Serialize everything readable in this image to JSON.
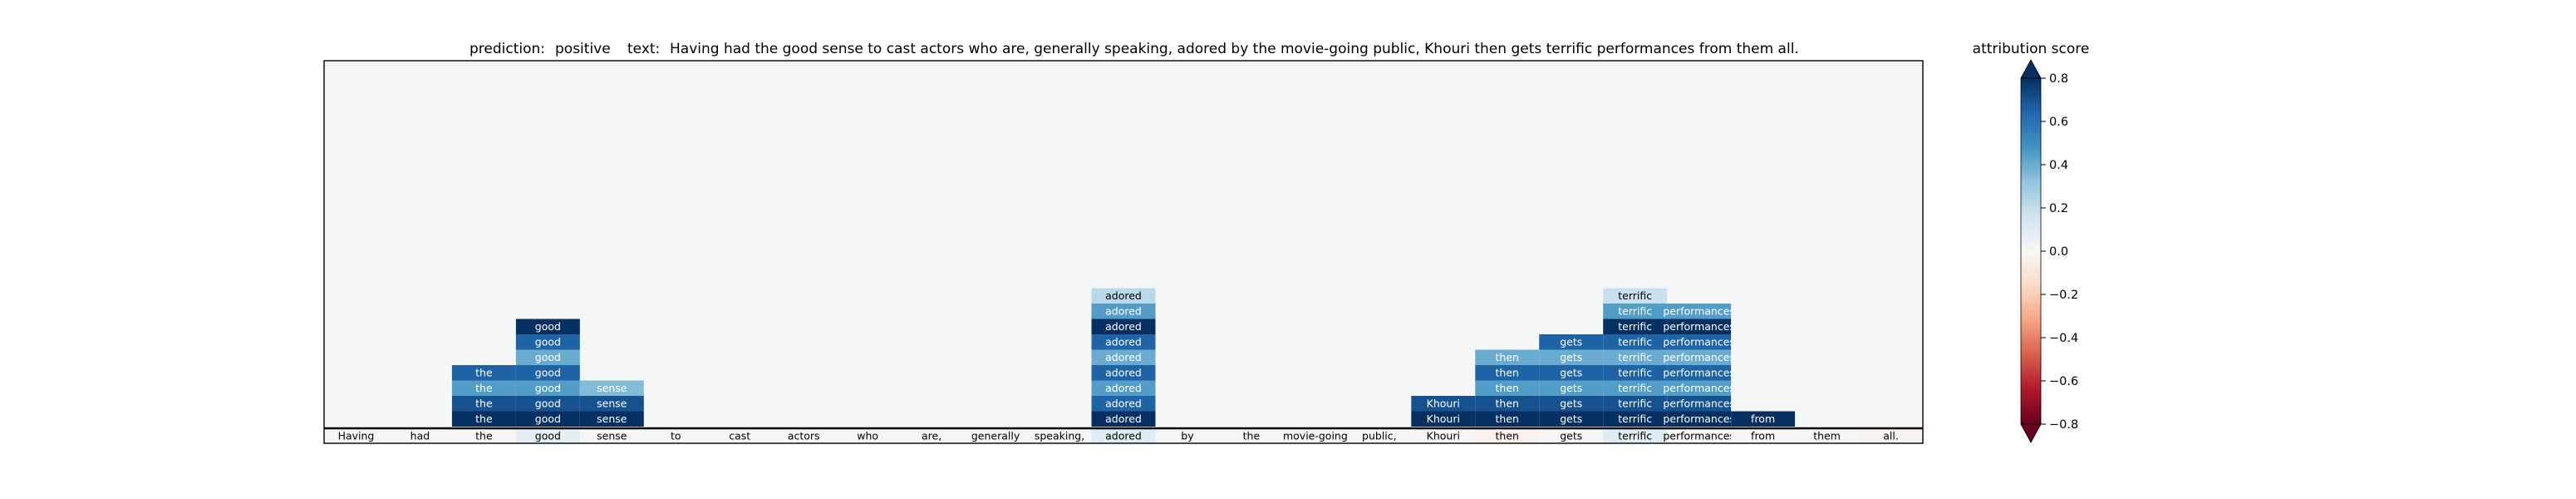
{
  "chart_data": {
    "type": "heatmap",
    "title_prediction_label": "prediction:",
    "title_prediction_value": "positive",
    "title_text_label": "text:",
    "title_text_value": "Having had the good sense to cast actors who are, generally speaking, adored by the movie-going public, Khouri then gets terrific performances from them all.",
    "tokens": [
      "Having",
      "had",
      "the",
      "good",
      "sense",
      "to",
      "cast",
      "actors",
      "who",
      "are,",
      "generally",
      "speaking,",
      "adored",
      "by",
      "the",
      "movie-going",
      "public,",
      "Khouri",
      "then",
      "gets",
      "terrific",
      "performances",
      "from",
      "them",
      "all."
    ],
    "base_row_scores": [
      0.0,
      0.0,
      0.0,
      0.08,
      0.0,
      0.0,
      0.0,
      0.0,
      0.0,
      0.0,
      0.0,
      0.0,
      0.1,
      0.0,
      0.0,
      0.0,
      0.0,
      0.0,
      -0.04,
      0.0,
      0.1,
      0.0,
      0.0,
      0.0,
      -0.03
    ],
    "cell_rows": 9,
    "cells": [
      {
        "token": 2,
        "row": 0,
        "score": 0.85,
        "label": "the"
      },
      {
        "token": 2,
        "row": 1,
        "score": 0.7,
        "label": "the"
      },
      {
        "token": 2,
        "row": 2,
        "score": 0.45,
        "label": "the"
      },
      {
        "token": 2,
        "row": 3,
        "score": 0.65,
        "label": "the"
      },
      {
        "token": 3,
        "row": 0,
        "score": 0.85,
        "label": "good"
      },
      {
        "token": 3,
        "row": 1,
        "score": 0.7,
        "label": "good"
      },
      {
        "token": 3,
        "row": 2,
        "score": 0.45,
        "label": "good"
      },
      {
        "token": 3,
        "row": 3,
        "score": 0.65,
        "label": "good"
      },
      {
        "token": 3,
        "row": 4,
        "score": 0.4,
        "label": "good"
      },
      {
        "token": 3,
        "row": 5,
        "score": 0.65,
        "label": "good"
      },
      {
        "token": 3,
        "row": 6,
        "score": 0.85,
        "label": "good"
      },
      {
        "token": 4,
        "row": 0,
        "score": 0.85,
        "label": "sense"
      },
      {
        "token": 4,
        "row": 1,
        "score": 0.7,
        "label": "sense"
      },
      {
        "token": 4,
        "row": 2,
        "score": 0.35,
        "label": "sense"
      },
      {
        "token": 12,
        "row": 0,
        "score": 0.85,
        "label": "adored"
      },
      {
        "token": 12,
        "row": 1,
        "score": 0.65,
        "label": "adored"
      },
      {
        "token": 12,
        "row": 2,
        "score": 0.45,
        "label": "adored"
      },
      {
        "token": 12,
        "row": 3,
        "score": 0.65,
        "label": "adored"
      },
      {
        "token": 12,
        "row": 4,
        "score": 0.4,
        "label": "adored"
      },
      {
        "token": 12,
        "row": 5,
        "score": 0.65,
        "label": "adored"
      },
      {
        "token": 12,
        "row": 6,
        "score": 0.85,
        "label": "adored"
      },
      {
        "token": 12,
        "row": 7,
        "score": 0.45,
        "label": "adored"
      },
      {
        "token": 12,
        "row": 8,
        "score": 0.22,
        "label": "adored"
      },
      {
        "token": 17,
        "row": 0,
        "score": 0.85,
        "label": "Khouri"
      },
      {
        "token": 17,
        "row": 1,
        "score": 0.7,
        "label": "Khouri"
      },
      {
        "token": 18,
        "row": 0,
        "score": 0.85,
        "label": "then"
      },
      {
        "token": 18,
        "row": 1,
        "score": 0.7,
        "label": "then"
      },
      {
        "token": 18,
        "row": 2,
        "score": 0.45,
        "label": "then"
      },
      {
        "token": 18,
        "row": 3,
        "score": 0.65,
        "label": "then"
      },
      {
        "token": 18,
        "row": 4,
        "score": 0.4,
        "label": "then"
      },
      {
        "token": 19,
        "row": 0,
        "score": 0.85,
        "label": "gets"
      },
      {
        "token": 19,
        "row": 1,
        "score": 0.7,
        "label": "gets"
      },
      {
        "token": 19,
        "row": 2,
        "score": 0.45,
        "label": "gets"
      },
      {
        "token": 19,
        "row": 3,
        "score": 0.65,
        "label": "gets"
      },
      {
        "token": 19,
        "row": 4,
        "score": 0.4,
        "label": "gets"
      },
      {
        "token": 19,
        "row": 5,
        "score": 0.65,
        "label": "gets"
      },
      {
        "token": 20,
        "row": 0,
        "score": 0.85,
        "label": "terrific"
      },
      {
        "token": 20,
        "row": 1,
        "score": 0.7,
        "label": "terrific"
      },
      {
        "token": 20,
        "row": 2,
        "score": 0.45,
        "label": "terrific"
      },
      {
        "token": 20,
        "row": 3,
        "score": 0.65,
        "label": "terrific"
      },
      {
        "token": 20,
        "row": 4,
        "score": 0.4,
        "label": "terrific"
      },
      {
        "token": 20,
        "row": 5,
        "score": 0.65,
        "label": "terrific"
      },
      {
        "token": 20,
        "row": 6,
        "score": 0.85,
        "label": "terrific"
      },
      {
        "token": 20,
        "row": 7,
        "score": 0.45,
        "label": "terrific"
      },
      {
        "token": 20,
        "row": 8,
        "score": 0.18,
        "label": "terrific"
      },
      {
        "token": 21,
        "row": 0,
        "score": 0.85,
        "label": "performances"
      },
      {
        "token": 21,
        "row": 1,
        "score": 0.7,
        "label": "performances"
      },
      {
        "token": 21,
        "row": 2,
        "score": 0.45,
        "label": "performances"
      },
      {
        "token": 21,
        "row": 3,
        "score": 0.65,
        "label": "performances"
      },
      {
        "token": 21,
        "row": 4,
        "score": 0.4,
        "label": "performances"
      },
      {
        "token": 21,
        "row": 5,
        "score": 0.65,
        "label": "performances"
      },
      {
        "token": 21,
        "row": 6,
        "score": 0.85,
        "label": "performances"
      },
      {
        "token": 21,
        "row": 7,
        "score": 0.45,
        "label": "performances"
      },
      {
        "token": 22,
        "row": 0,
        "score": 0.85,
        "label": "from"
      }
    ],
    "colorbar": {
      "title": "attribution score",
      "range": [
        -0.8,
        0.8
      ],
      "ticks": [
        0.8,
        0.6,
        0.4,
        0.2,
        0.0,
        -0.2,
        -0.4,
        -0.6,
        -0.8
      ],
      "tick_labels": [
        "0.8",
        "0.6",
        "0.4",
        "0.2",
        "0.0",
        "−0.2",
        "−0.4",
        "−0.6",
        "−0.8"
      ],
      "colormap": "RdBu",
      "extend": "both"
    },
    "colors": {
      "background": "#f5f6f6",
      "frame": "#000000",
      "cmap_stops": [
        "#67001f",
        "#b2182b",
        "#d6604d",
        "#f4a582",
        "#fddbc7",
        "#f7f7f7",
        "#d1e5f0",
        "#92c5de",
        "#4393c3",
        "#2166ac",
        "#053061"
      ]
    }
  }
}
